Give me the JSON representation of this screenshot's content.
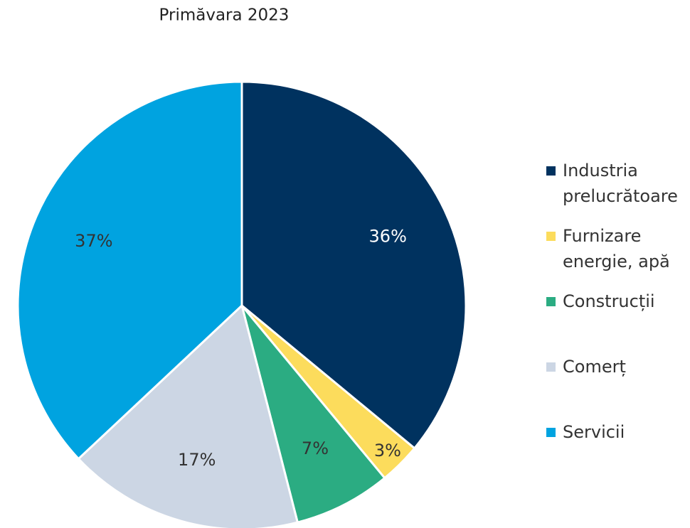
{
  "chart_data": {
    "type": "pie",
    "title": "Primăvara 2023",
    "categories": [
      "Industria prelucrătoare",
      "Furnizare energie, apă",
      "Construcții",
      "Comerț",
      "Servicii"
    ],
    "values": [
      36,
      3,
      7,
      17,
      37
    ],
    "value_labels": [
      "36%",
      "3%",
      "7%",
      "17%",
      "37%"
    ],
    "colors": [
      "#00325f",
      "#fcdc5c",
      "#2bac82",
      "#ccd6e4",
      "#00a3e0"
    ],
    "legend": "right"
  }
}
